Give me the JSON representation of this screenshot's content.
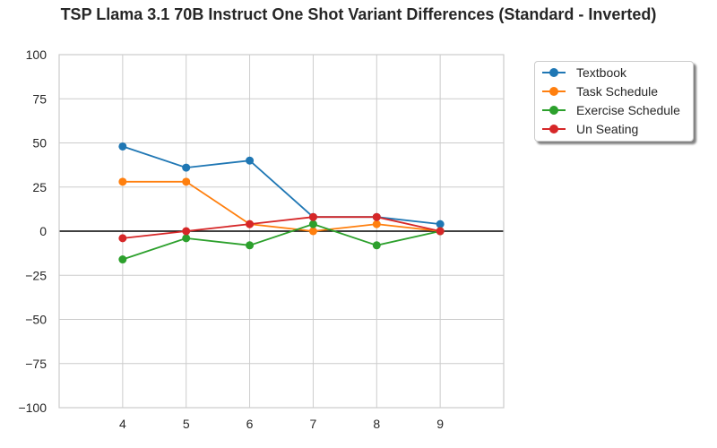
{
  "chart_data": {
    "type": "line",
    "title": "TSP Llama 3.1 70B Instruct One Shot Variant Differences (Standard - Inverted)",
    "xlabel": "",
    "ylabel": "",
    "x": [
      4,
      5,
      6,
      7,
      8,
      9
    ],
    "xlim": [
      3,
      10
    ],
    "ylim": [
      -100,
      100
    ],
    "yticks": [
      -100,
      -75,
      -50,
      -25,
      0,
      25,
      50,
      75,
      100
    ],
    "ytick_labels": [
      "−100",
      "−75",
      "−50",
      "−25",
      "0",
      "25",
      "50",
      "75",
      "100"
    ],
    "xticks": [
      4,
      5,
      6,
      7,
      8,
      9
    ],
    "xtick_labels": [
      "4",
      "5",
      "6",
      "7",
      "8",
      "9"
    ],
    "grid": true,
    "zero_line": true,
    "legend_position": "outside-top-right",
    "series": [
      {
        "name": "Textbook",
        "color": "#1f77b4",
        "values": [
          48,
          36,
          40,
          8,
          8,
          4
        ]
      },
      {
        "name": "Task Schedule",
        "color": "#ff7f0e",
        "values": [
          28,
          28,
          4,
          0,
          4,
          0
        ]
      },
      {
        "name": "Exercise Schedule",
        "color": "#2ca02c",
        "values": [
          -16,
          -4,
          -8,
          4,
          -8,
          0
        ]
      },
      {
        "name": "Un Seating",
        "color": "#d62728",
        "values": [
          -4,
          0,
          4,
          8,
          8,
          0
        ]
      }
    ]
  }
}
